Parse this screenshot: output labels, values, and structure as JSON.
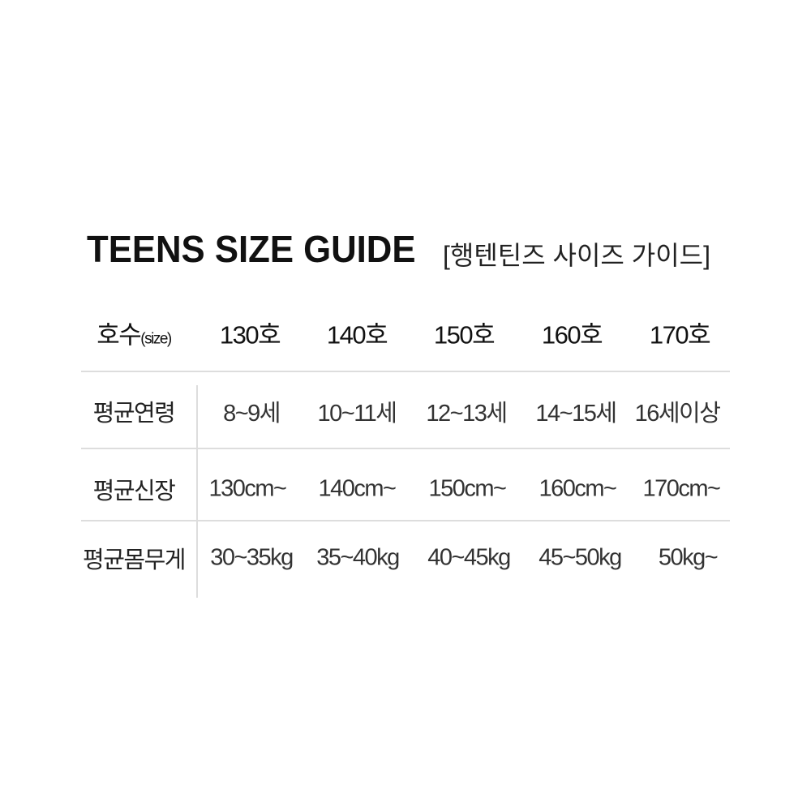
{
  "title": "TEENS SIZE GUIDE",
  "subtitle": "[행텐틴즈 사이즈 가이드]",
  "table": {
    "header_label": "호수",
    "header_label_suffix": "(size)",
    "columns": [
      "130호",
      "140호",
      "150호",
      "160호",
      "170호"
    ],
    "rows": [
      {
        "label": "평균연령",
        "values": [
          "8~9세",
          "10~11세",
          "12~13세",
          "14~15세",
          "16세이상"
        ]
      },
      {
        "label": "평균신장",
        "values": [
          "130cm~",
          "140cm~",
          "150cm~",
          "160cm~",
          "170cm~"
        ]
      },
      {
        "label": "평균몸무게",
        "values": [
          "30~35kg",
          "35~40kg",
          "40~45kg",
          "45~50kg",
          "50kg~"
        ]
      }
    ]
  }
}
